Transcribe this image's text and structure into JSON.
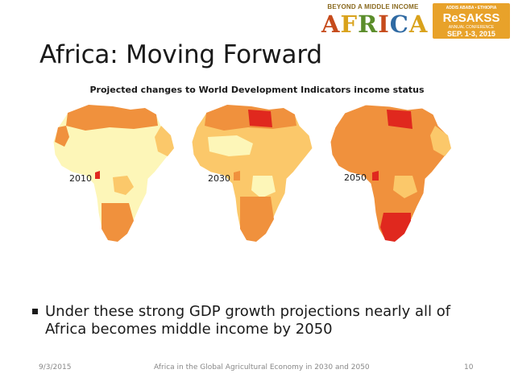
{
  "logos": {
    "africa_top": "BEYOND A MIDDLE INCOME",
    "africa_big": [
      "A",
      "F",
      "R",
      "I",
      "C",
      "A"
    ],
    "resakss_line1": "ADDIS ABABA • ETHIOPIA",
    "resakss_name": "ReSAKSS",
    "resakss_line3": "ANNUAL CONFERENCE",
    "resakss_date": "SEP. 1-3, 2015"
  },
  "slide": {
    "title": "Africa: Moving Forward",
    "subtitle": "Projected changes to World Development Indicators income status"
  },
  "maps": [
    {
      "year": "2010"
    },
    {
      "year": "2030"
    },
    {
      "year": "2050"
    }
  ],
  "colors": {
    "low": "#fdf6b8",
    "lower_middle": "#fbc86a",
    "upper_middle": "#f0913d",
    "high": "#e0281e",
    "border": "#ffffff"
  },
  "bullet": {
    "text": "Under these strong GDP growth projections nearly all of Africa becomes middle income by 2050"
  },
  "footer": {
    "date": "9/3/2015",
    "center": "Africa in the Global Agricultural Economy in 2030 and 2050",
    "page": "10"
  }
}
